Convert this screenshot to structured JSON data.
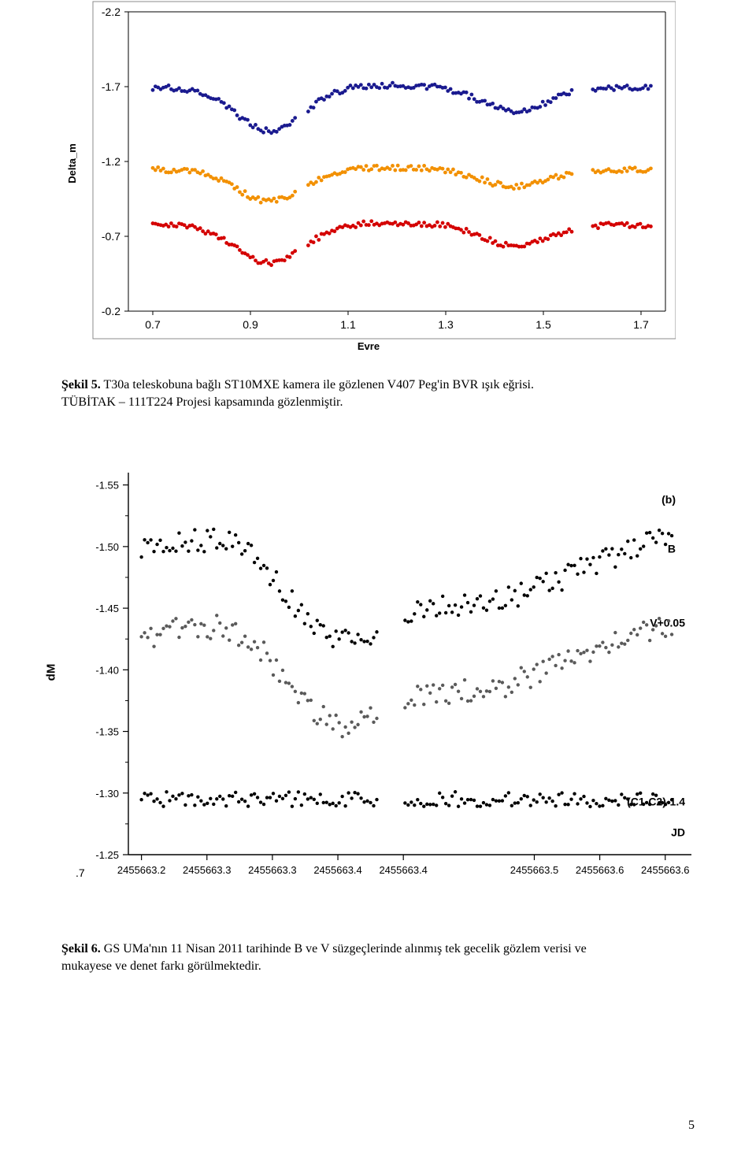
{
  "chart1": {
    "type": "scatter",
    "yaxis_label": "Delta_m",
    "xaxis_label": "Evre",
    "yaxis_label_fontsize": 13,
    "xaxis_label_fontsize": 13,
    "tick_fontsize": 14,
    "tick_font": "Arial",
    "plot_bg": "#ffffff",
    "outer_border_color": "#8b8b8b",
    "inner_border_color": "#000000",
    "xticks": [
      "0.7",
      "0.9",
      "1.1",
      "1.3",
      "1.5",
      "1.7"
    ],
    "xtick_vals": [
      0.7,
      0.9,
      1.1,
      1.3,
      1.5,
      1.7
    ],
    "xlim": [
      0.65,
      1.75
    ],
    "yticks": [
      "-2.2",
      "-1.7",
      "-1.2",
      "-0.7",
      "-0.2"
    ],
    "ytick_vals": [
      -2.2,
      -1.7,
      -1.2,
      -0.7,
      -0.2
    ],
    "ylim": [
      -0.2,
      -2.2
    ],
    "marker_size": 2.4,
    "series": [
      {
        "color": "#1a1a8f",
        "offset": -1.7,
        "amp": 0.3,
        "scatter": 0.018
      },
      {
        "color": "#f29000",
        "offset": -1.15,
        "amp": 0.22,
        "scatter": 0.018
      },
      {
        "color": "#d40000",
        "offset": -0.78,
        "amp": 0.26,
        "scatter": 0.018
      }
    ],
    "phase_min": 0.7,
    "phase_max": 1.72,
    "n_points": 190,
    "dip1_center": 0.94,
    "dip1_width": 0.14,
    "dip2_center": 1.44,
    "dip2_width": 0.14,
    "gap1": [
      0.995,
      1.015
    ],
    "gap2": [
      1.56,
      1.6
    ]
  },
  "caption1": {
    "label": "Şekil 5.",
    "text_a": " T30a teleskobuna bağlı ST10MXE kamera  ile gözlenen V407 Peg'in BVR ışık eğrisi.",
    "text_b": "TÜBİTAK – 111T224 Projesi kapsamında gözlenmiştir.",
    "fontsize": 16
  },
  "chart2": {
    "type": "scatter",
    "yaxis_label": "dM",
    "xaxis_label": "JD",
    "yaxis_label_fontsize": 15,
    "xaxis_label_fontsize": 14,
    "tick_fontsize": 13,
    "marker_size": 2.2,
    "plot_bg": "#ffffff",
    "axis_color": "#000000",
    "corner_label": ".7",
    "yticks": [
      "-1.55",
      "-1.50",
      "-1.45",
      "-1.40",
      "-1.35",
      "-1.30",
      "-1.25"
    ],
    "ytick_vals": [
      -1.55,
      -1.5,
      -1.45,
      -1.4,
      -1.35,
      -1.3,
      -1.25
    ],
    "ylim": [
      -1.25,
      -1.56
    ],
    "xticks": [
      "2455663.2",
      "2455663.3",
      "2455663.3",
      "2455663.4",
      "2455663.4",
      "2455663.5",
      "2455663.6",
      "2455663.6"
    ],
    "xtick_vals": [
      2455663.2,
      2455663.25,
      2455663.3,
      2455663.35,
      2455663.4,
      2455663.5,
      2455663.55,
      2455663.6
    ],
    "xlim": [
      2455663.19,
      2455663.62
    ],
    "annotations": {
      "b_panel": "(b)",
      "B": "B",
      "V": "V+0.05",
      "C": "(C1-C2)-1.4",
      "fontsize": 14
    },
    "series": [
      {
        "name": "B",
        "color": "#000000",
        "offset": -1.48,
        "amp": 0.045,
        "scatter": 0.01
      },
      {
        "name": "V",
        "color": "#5a5a5a",
        "offset": -1.41,
        "amp": 0.045,
        "scatter": 0.01
      },
      {
        "name": "C",
        "color": "#000000",
        "offset": -1.295,
        "amp": 0.004,
        "scatter": 0.006
      }
    ],
    "t_min": 2455663.2,
    "t_max": 2455663.605,
    "dip_center": 2455663.345,
    "dip_width": 0.035,
    "dip_depth": 0.055,
    "gap_a": [
      2455663.38,
      2455663.4
    ],
    "n_points": 170
  },
  "caption2": {
    "label": "Şekil 6.",
    "text_a": " GS UMa'nın 11 Nisan 2011 tarihinde B ve V süzgeçlerinde alınmış tek gecelik gözlem verisi ve",
    "text_b": "mukayese ve denet farkı görülmektedir.",
    "fontsize": 16
  },
  "page_number": "5",
  "page_number_fontsize": 16
}
